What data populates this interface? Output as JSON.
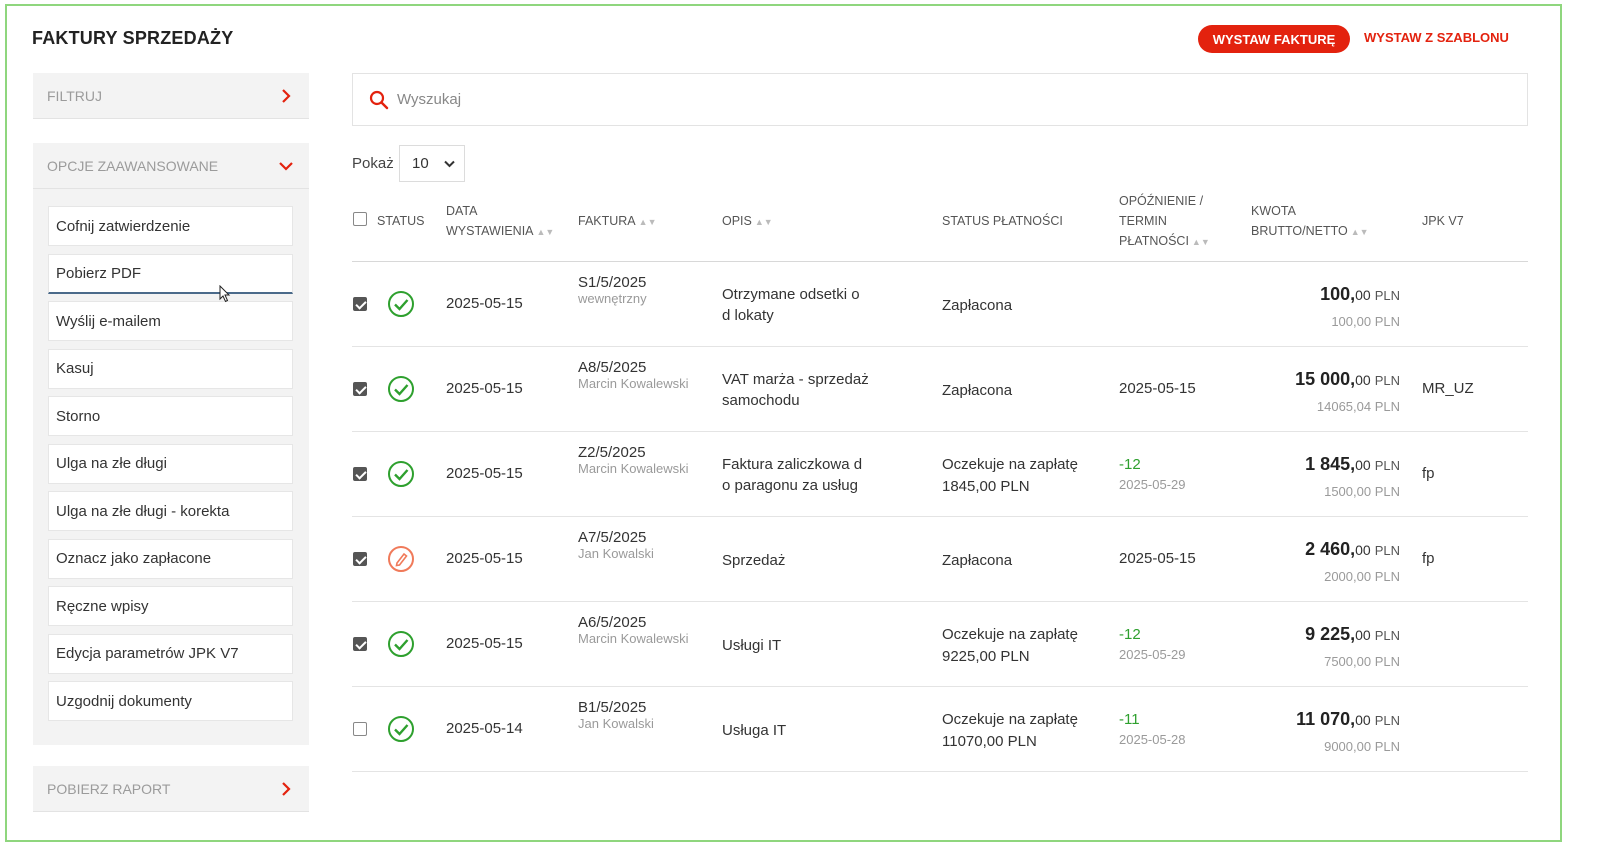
{
  "header": {
    "title": "FAKTURY SPRZEDAŻY",
    "primary_button": "WYSTAW FAKTURĘ",
    "secondary_link": "WYSTAW Z SZABLONU",
    "accent_color": "#e3220e"
  },
  "sidebar": {
    "filter_label": "FILTRUJ",
    "advanced_label": "OPCJE ZAAWANSOWANE",
    "advanced_items": [
      {
        "label": "Cofnij zatwierdzenie"
      },
      {
        "label": "Pobierz PDF"
      },
      {
        "label": "Wyślij e-mailem"
      },
      {
        "label": "Kasuj"
      },
      {
        "label": "Storno"
      },
      {
        "label": "Ulga na złe długi"
      },
      {
        "label": "Ulga na złe długi - korekta"
      },
      {
        "label": "Oznacz jako zapłacone"
      },
      {
        "label": "Ręczne wpisy"
      },
      {
        "label": "Edycja parametrów JPK V7"
      },
      {
        "label": "Uzgodnij dokumenty"
      }
    ],
    "report_label": "POBIERZ RAPORT"
  },
  "search": {
    "placeholder": "Wyszukaj"
  },
  "pagination": {
    "show_label": "Pokaż",
    "page_size": "10"
  },
  "table": {
    "columns": {
      "status": "STATUS",
      "date_line1": "DATA",
      "date_line2": "WYSTAWIENIA",
      "invoice": "FAKTURA",
      "desc": "OPIS",
      "payment_status": "STATUS PŁATNOŚCI",
      "delay_line1": "OPÓŹNIENIE /",
      "delay_line2": "TERMIN",
      "delay_line3": "PŁATNOŚCI",
      "amount_line1": "KWOTA",
      "amount_line2": "BRUTTO/NETTO",
      "jpk": "JPK V7"
    },
    "rows": [
      {
        "checked": true,
        "status": "ok",
        "date": "2025-05-15",
        "invoice": "S1/5/2025",
        "author": "wewnętrzny",
        "desc_l1": "Otrzymane odsetki o",
        "desc_l2": "d lokaty",
        "pay_l1": "Zapłacona",
        "pay_l2": "",
        "delay": "",
        "due": "",
        "amount_int": "100,",
        "amount_dec": "00",
        "currency": "PLN",
        "net": "100,00 PLN",
        "jpk": ""
      },
      {
        "checked": true,
        "status": "ok",
        "date": "2025-05-15",
        "invoice": "A8/5/2025",
        "author": "Marcin Kowalewski",
        "desc_l1": "VAT marża - sprzedaż",
        "desc_l2": "samochodu",
        "pay_l1": "Zapłacona",
        "pay_l2": "",
        "delay": "",
        "due": "2025-05-15",
        "amount_int": "15 000,",
        "amount_dec": "00",
        "currency": "PLN",
        "net": "14065,04 PLN",
        "jpk": "MR_UZ"
      },
      {
        "checked": true,
        "status": "ok",
        "date": "2025-05-15",
        "invoice": "Z2/5/2025",
        "author": "Marcin Kowalewski",
        "desc_l1": "Faktura zaliczkowa d",
        "desc_l2": "o paragonu za usług",
        "pay_l1": "Oczekuje na zapłatę",
        "pay_l2": "1845,00 PLN",
        "delay": "-12",
        "due": "2025-05-29",
        "amount_int": "1 845,",
        "amount_dec": "00",
        "currency": "PLN",
        "net": "1500,00 PLN",
        "jpk": "fp"
      },
      {
        "checked": true,
        "status": "edit",
        "date": "2025-05-15",
        "invoice": "A7/5/2025",
        "author": "Jan Kowalski",
        "desc_l1": "Sprzedaż",
        "desc_l2": "",
        "pay_l1": "Zapłacona",
        "pay_l2": "",
        "delay": "",
        "due": "2025-05-15",
        "amount_int": "2 460,",
        "amount_dec": "00",
        "currency": "PLN",
        "net": "2000,00 PLN",
        "jpk": "fp"
      },
      {
        "checked": true,
        "status": "ok",
        "date": "2025-05-15",
        "invoice": "A6/5/2025",
        "author": "Marcin Kowalewski",
        "desc_l1": "Usługi IT",
        "desc_l2": "",
        "pay_l1": "Oczekuje na zapłatę",
        "pay_l2": "9225,00 PLN",
        "delay": "-12",
        "due": "2025-05-29",
        "amount_int": "9 225,",
        "amount_dec": "00",
        "currency": "PLN",
        "net": "7500,00 PLN",
        "jpk": ""
      },
      {
        "checked": false,
        "status": "ok",
        "date": "2025-05-14",
        "invoice": "B1/5/2025",
        "author": "Jan Kowalski",
        "desc_l1": "Usługa IT",
        "desc_l2": "",
        "pay_l1": "Oczekuje na zapłatę",
        "pay_l2": "11070,00 PLN",
        "delay": "-11",
        "due": "2025-05-28",
        "amount_int": "11 070,",
        "amount_dec": "00",
        "currency": "PLN",
        "net": "9000,00 PLN",
        "jpk": ""
      }
    ]
  },
  "colors": {
    "ok_status": "#2ea02e",
    "edit_status": "#f07a5a",
    "frame_border": "#8fd67e"
  }
}
